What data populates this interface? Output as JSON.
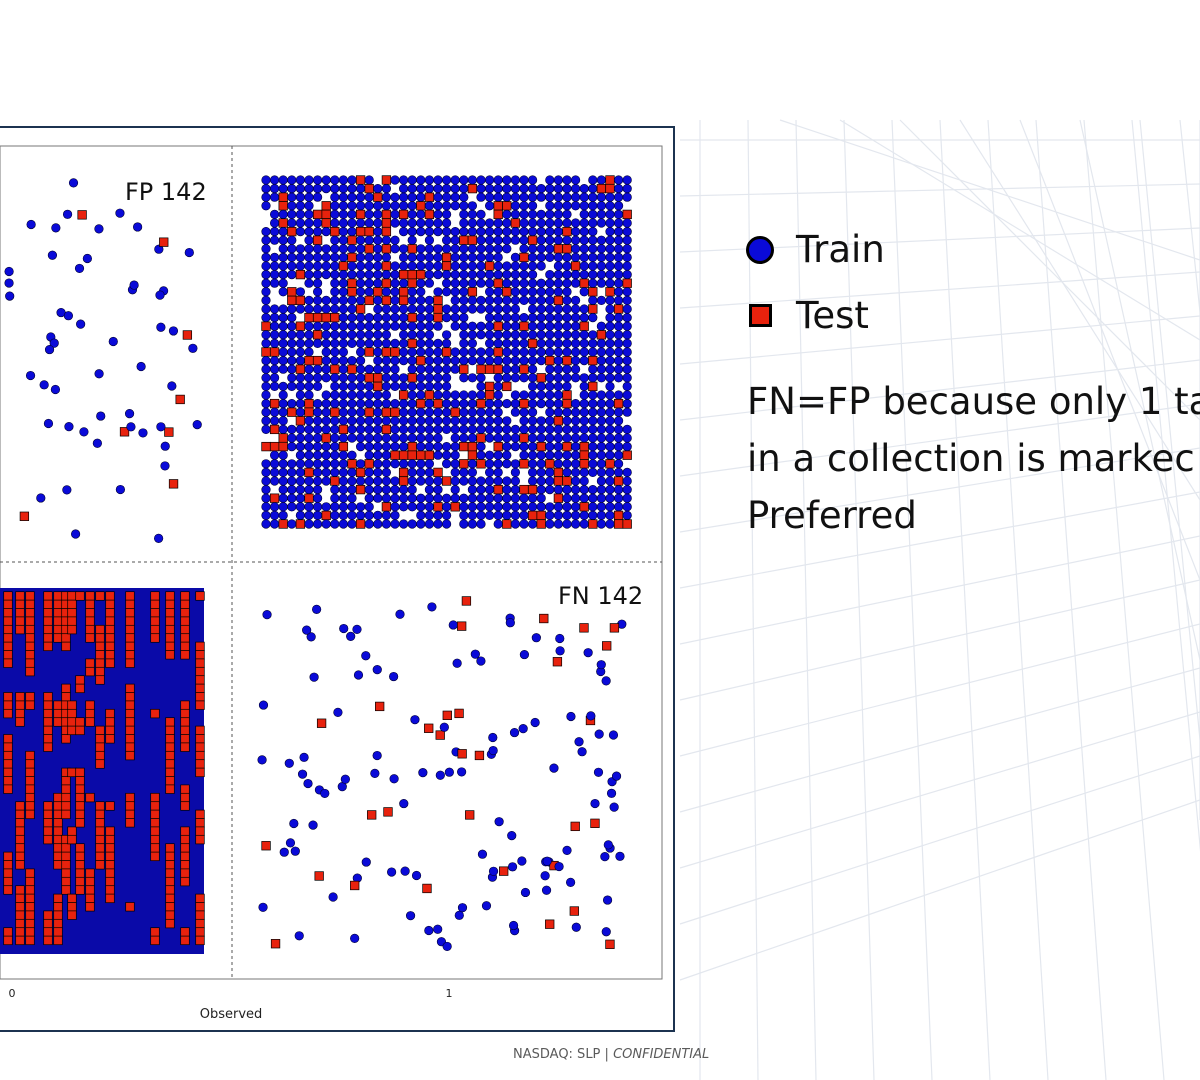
{
  "chart_data": {
    "type": "scatter",
    "title": "",
    "xlabel": "Observed",
    "ylabel": "",
    "x_ticks": [
      "0",
      "1"
    ],
    "grid": true,
    "legend_position": "right",
    "series": [
      {
        "name": "Train",
        "marker": "circle",
        "color": "#0a0ad8"
      },
      {
        "name": "Test",
        "marker": "square",
        "color": "#e8220d"
      }
    ],
    "panels": [
      {
        "id": "top-left",
        "label": "FP 142",
        "observed": 0,
        "description_count": 142
      },
      {
        "id": "top-right",
        "label": "",
        "observed": 1
      },
      {
        "id": "bottom-left",
        "label": "",
        "observed": 0
      },
      {
        "id": "bottom-right",
        "label": "FN 142",
        "observed": 1,
        "description_count": 142
      }
    ]
  },
  "legend": {
    "train_label": "Train",
    "test_label": "Test"
  },
  "note": {
    "line1": "FN=FP because only 1 ta",
    "line2": "in a collection is markec",
    "line3": "Preferred"
  },
  "footer": {
    "left": "NASDAQ: SLP |",
    "right": "CONFIDENTIAL"
  },
  "colors": {
    "train": "#0a0ad8",
    "test": "#e8220d",
    "dense_fill": "#0a0aa8",
    "frame": "#1c3350"
  }
}
